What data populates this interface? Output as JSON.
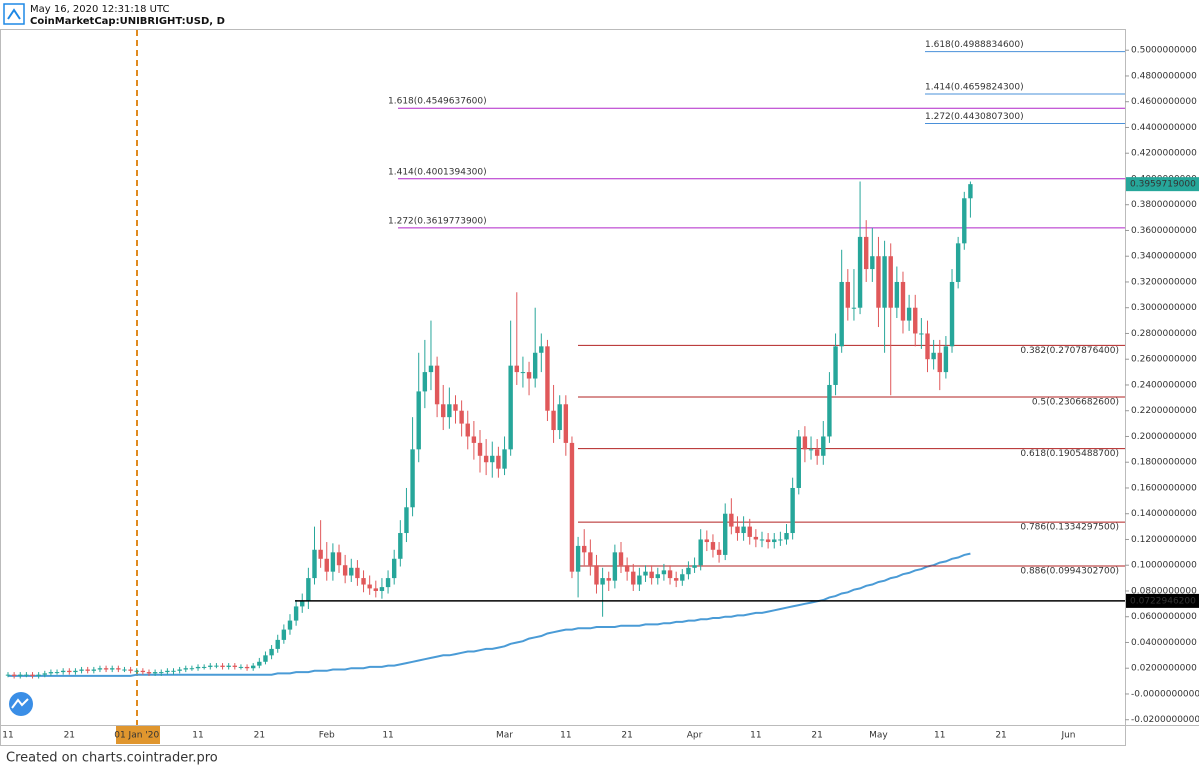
{
  "header": {
    "timestamp": "May 16, 2020 12:31:18 UTC",
    "symbol": "CoinMarketCap:UNIBRIGHT:USD, D"
  },
  "footer": "Created on charts.cointrader.pro",
  "chart_data": {
    "type": "candlestick",
    "categories": [
      "11",
      null,
      null,
      null,
      null,
      null,
      null,
      null,
      null,
      null,
      "21",
      null,
      null,
      null,
      null,
      null,
      null,
      null,
      null,
      null,
      null,
      "01 Jan '20",
      null,
      null,
      null,
      null,
      null,
      null,
      null,
      null,
      null,
      "11",
      null,
      null,
      null,
      null,
      null,
      null,
      null,
      null,
      null,
      "21",
      null,
      null,
      null,
      null,
      null,
      null,
      null,
      null,
      null,
      null,
      "Feb",
      null,
      null,
      null,
      null,
      null,
      null,
      null,
      null,
      null,
      "11",
      null,
      null,
      null,
      null,
      null,
      null,
      null,
      null,
      null,
      null,
      null,
      null,
      null,
      null,
      null,
      null,
      null,
      null,
      "Mar",
      null,
      null,
      null,
      null,
      null,
      null,
      null,
      null,
      null,
      "11",
      null,
      null,
      null,
      null,
      null,
      null,
      null,
      null,
      null,
      "21",
      null,
      null,
      null,
      null,
      null,
      null,
      null,
      null,
      null,
      null,
      "Apr",
      null,
      null,
      null,
      null,
      null,
      null,
      null,
      null,
      null,
      "11",
      null,
      null,
      null,
      null,
      null,
      null,
      null,
      null,
      null,
      "21",
      null,
      null,
      null,
      null,
      null,
      null,
      null,
      null,
      null,
      "May",
      null,
      null,
      null,
      null,
      null,
      null,
      null,
      null,
      null,
      "11",
      null,
      null,
      null,
      null,
      null,
      null,
      null,
      null,
      null,
      "21",
      null,
      null,
      null,
      null,
      null,
      null,
      null,
      null,
      null,
      null,
      "Jun"
    ],
    "open": [
      0.015,
      0.015,
      0.014,
      0.015,
      0.015,
      0.014,
      0.015,
      0.016,
      0.017,
      0.017,
      0.018,
      0.017,
      0.018,
      0.019,
      0.018,
      0.019,
      0.02,
      0.019,
      0.02,
      0.019,
      0.019,
      0.018,
      0.018,
      0.017,
      0.016,
      0.017,
      0.017,
      0.018,
      0.018,
      0.019,
      0.02,
      0.02,
      0.021,
      0.021,
      0.022,
      0.022,
      0.021,
      0.022,
      0.021,
      0.021,
      0.02,
      0.022,
      0.025,
      0.03,
      0.035,
      0.042,
      0.05,
      0.057,
      0.068,
      0.072,
      0.09,
      0.112,
      0.105,
      0.095,
      0.11,
      0.1,
      0.092,
      0.098,
      0.09,
      0.085,
      0.082,
      0.08,
      0.083,
      0.09,
      0.105,
      0.125,
      0.145,
      0.19,
      0.235,
      0.25,
      0.255,
      0.225,
      0.215,
      0.225,
      0.22,
      0.21,
      0.2,
      0.195,
      0.185,
      0.18,
      0.185,
      0.175,
      0.19,
      0.255,
      0.25,
      0.25,
      0.245,
      0.265,
      0.27,
      0.22,
      0.205,
      0.225,
      0.195,
      0.095,
      0.115,
      0.11,
      0.1,
      0.085,
      0.09,
      0.088,
      0.11,
      0.1,
      0.095,
      0.085,
      0.092,
      0.095,
      0.09,
      0.093,
      0.096,
      0.09,
      0.088,
      0.093,
      0.098,
      0.1,
      0.12,
      0.118,
      0.112,
      0.108,
      0.14,
      0.13,
      0.125,
      0.13,
      0.122,
      0.12,
      0.12,
      0.118,
      0.12,
      0.12,
      0.125,
      0.16,
      0.2,
      0.19,
      0.19,
      0.185,
      0.2,
      0.24,
      0.27,
      0.32,
      0.3,
      0.3,
      0.355,
      0.33,
      0.34,
      0.3,
      0.34,
      0.3,
      0.32,
      0.29,
      0.3,
      0.28,
      0.28,
      0.26,
      0.265,
      0.25,
      0.27,
      0.32,
      0.35,
      0.385,
      null,
      null,
      null,
      null,
      null,
      null,
      null,
      null,
      null,
      null,
      null,
      null,
      null,
      null,
      null,
      null
    ],
    "high": [
      0.017,
      0.017,
      0.017,
      0.017,
      0.017,
      0.017,
      0.018,
      0.019,
      0.019,
      0.02,
      0.02,
      0.02,
      0.021,
      0.021,
      0.021,
      0.022,
      0.022,
      0.022,
      0.022,
      0.021,
      0.021,
      0.02,
      0.02,
      0.019,
      0.019,
      0.019,
      0.02,
      0.02,
      0.021,
      0.022,
      0.022,
      0.023,
      0.023,
      0.024,
      0.024,
      0.024,
      0.024,
      0.024,
      0.023,
      0.023,
      0.024,
      0.028,
      0.033,
      0.038,
      0.046,
      0.054,
      0.062,
      0.073,
      0.078,
      0.098,
      0.13,
      0.135,
      0.118,
      0.117,
      0.116,
      0.108,
      0.105,
      0.104,
      0.096,
      0.092,
      0.088,
      0.09,
      0.096,
      0.112,
      0.135,
      0.16,
      0.215,
      0.265,
      0.275,
      0.29,
      0.262,
      0.24,
      0.238,
      0.232,
      0.228,
      0.22,
      0.212,
      0.205,
      0.198,
      0.196,
      0.192,
      0.2,
      0.29,
      0.312,
      0.262,
      0.258,
      0.3,
      0.28,
      0.275,
      0.24,
      0.232,
      0.232,
      0.2,
      0.122,
      0.128,
      0.12,
      0.108,
      0.098,
      0.095,
      0.116,
      0.118,
      0.106,
      0.101,
      0.098,
      0.1,
      0.1,
      0.098,
      0.101,
      0.1,
      0.095,
      0.097,
      0.103,
      0.106,
      0.128,
      0.127,
      0.124,
      0.118,
      0.148,
      0.152,
      0.138,
      0.138,
      0.136,
      0.128,
      0.126,
      0.125,
      0.125,
      0.126,
      0.132,
      0.168,
      0.205,
      0.208,
      0.2,
      0.198,
      0.212,
      0.25,
      0.28,
      0.345,
      0.33,
      0.33,
      0.398,
      0.368,
      0.362,
      0.355,
      0.352,
      0.35,
      0.332,
      0.328,
      0.31,
      0.31,
      0.292,
      0.29,
      0.275,
      0.275,
      0.278,
      0.33,
      0.355,
      0.39,
      0.398,
      null,
      null,
      null,
      null,
      null,
      null,
      null,
      null,
      null,
      null,
      null,
      null,
      null,
      null,
      null,
      null
    ],
    "low": [
      0.013,
      0.012,
      0.012,
      0.013,
      0.012,
      0.012,
      0.013,
      0.014,
      0.015,
      0.015,
      0.015,
      0.015,
      0.016,
      0.016,
      0.016,
      0.017,
      0.017,
      0.017,
      0.017,
      0.017,
      0.016,
      0.016,
      0.015,
      0.014,
      0.014,
      0.014,
      0.015,
      0.015,
      0.016,
      0.017,
      0.018,
      0.018,
      0.019,
      0.019,
      0.02,
      0.019,
      0.019,
      0.019,
      0.019,
      0.018,
      0.018,
      0.02,
      0.023,
      0.027,
      0.032,
      0.039,
      0.046,
      0.053,
      0.063,
      0.066,
      0.085,
      0.098,
      0.088,
      0.088,
      0.094,
      0.086,
      0.087,
      0.084,
      0.079,
      0.077,
      0.075,
      0.074,
      0.078,
      0.085,
      0.099,
      0.118,
      0.138,
      0.18,
      0.222,
      0.236,
      0.215,
      0.205,
      0.206,
      0.21,
      0.2,
      0.19,
      0.182,
      0.172,
      0.17,
      0.168,
      0.168,
      0.17,
      0.185,
      0.24,
      0.238,
      0.232,
      0.238,
      0.25,
      0.212,
      0.195,
      0.198,
      0.185,
      0.09,
      0.075,
      0.1,
      0.092,
      0.078,
      0.06,
      0.08,
      0.082,
      0.094,
      0.088,
      0.08,
      0.08,
      0.087,
      0.085,
      0.085,
      0.088,
      0.085,
      0.083,
      0.084,
      0.089,
      0.094,
      0.096,
      0.111,
      0.106,
      0.102,
      0.104,
      0.124,
      0.119,
      0.119,
      0.116,
      0.114,
      0.114,
      0.113,
      0.113,
      0.115,
      0.116,
      0.12,
      0.155,
      0.18,
      0.182,
      0.178,
      0.178,
      0.195,
      0.232,
      0.265,
      0.29,
      0.29,
      0.295,
      0.32,
      0.32,
      0.285,
      0.265,
      0.232,
      0.292,
      0.28,
      0.282,
      0.27,
      0.268,
      0.25,
      0.252,
      0.236,
      0.245,
      0.265,
      0.315,
      0.345,
      0.37,
      null,
      null,
      null,
      null,
      null,
      null,
      null,
      null,
      null,
      null,
      null,
      null,
      null,
      null,
      null,
      null
    ],
    "close": [
      0.015,
      0.014,
      0.015,
      0.015,
      0.014,
      0.015,
      0.016,
      0.017,
      0.017,
      0.018,
      0.017,
      0.018,
      0.019,
      0.018,
      0.019,
      0.02,
      0.019,
      0.02,
      0.019,
      0.019,
      0.018,
      0.018,
      0.017,
      0.016,
      0.017,
      0.017,
      0.018,
      0.018,
      0.019,
      0.02,
      0.02,
      0.021,
      0.021,
      0.022,
      0.022,
      0.021,
      0.022,
      0.021,
      0.021,
      0.02,
      0.022,
      0.025,
      0.03,
      0.035,
      0.042,
      0.05,
      0.057,
      0.068,
      0.072,
      0.09,
      0.112,
      0.105,
      0.095,
      0.11,
      0.1,
      0.092,
      0.098,
      0.09,
      0.085,
      0.082,
      0.08,
      0.083,
      0.09,
      0.105,
      0.125,
      0.145,
      0.19,
      0.235,
      0.25,
      0.255,
      0.225,
      0.215,
      0.225,
      0.22,
      0.21,
      0.2,
      0.195,
      0.185,
      0.18,
      0.185,
      0.175,
      0.19,
      0.255,
      0.25,
      0.25,
      0.245,
      0.265,
      0.27,
      0.22,
      0.205,
      0.225,
      0.195,
      0.095,
      0.115,
      0.11,
      0.1,
      0.085,
      0.09,
      0.088,
      0.11,
      0.1,
      0.095,
      0.085,
      0.092,
      0.095,
      0.09,
      0.093,
      0.096,
      0.09,
      0.088,
      0.093,
      0.098,
      0.1,
      0.12,
      0.118,
      0.112,
      0.108,
      0.14,
      0.13,
      0.125,
      0.13,
      0.122,
      0.12,
      0.12,
      0.118,
      0.12,
      0.12,
      0.125,
      0.16,
      0.2,
      0.19,
      0.19,
      0.185,
      0.2,
      0.24,
      0.27,
      0.32,
      0.3,
      0.3,
      0.355,
      0.33,
      0.34,
      0.3,
      0.34,
      0.3,
      0.32,
      0.29,
      0.3,
      0.28,
      0.28,
      0.26,
      0.265,
      0.25,
      0.27,
      0.32,
      0.35,
      0.385,
      0.3959719,
      null,
      null,
      null,
      null,
      null,
      null,
      null,
      null,
      null,
      null,
      null,
      null,
      null,
      null,
      null,
      null
    ],
    "up_color": "#26a69a",
    "down_color": "#e0585a",
    "ma": {
      "color": "#4a9bd6",
      "values": [
        0.014,
        0.014,
        0.014,
        0.014,
        0.014,
        0.014,
        0.014,
        0.014,
        0.014,
        0.014,
        0.014,
        0.014,
        0.014,
        0.014,
        0.014,
        0.014,
        0.014,
        0.014,
        0.014,
        0.014,
        0.014,
        0.015,
        0.015,
        0.015,
        0.015,
        0.015,
        0.015,
        0.015,
        0.015,
        0.015,
        0.015,
        0.015,
        0.015,
        0.015,
        0.015,
        0.015,
        0.015,
        0.015,
        0.015,
        0.015,
        0.015,
        0.015,
        0.015,
        0.015,
        0.016,
        0.016,
        0.016,
        0.017,
        0.017,
        0.017,
        0.018,
        0.018,
        0.018,
        0.019,
        0.019,
        0.019,
        0.02,
        0.02,
        0.02,
        0.021,
        0.021,
        0.021,
        0.022,
        0.022,
        0.023,
        0.024,
        0.025,
        0.026,
        0.027,
        0.028,
        0.029,
        0.03,
        0.03,
        0.031,
        0.032,
        0.033,
        0.033,
        0.034,
        0.035,
        0.035,
        0.036,
        0.037,
        0.039,
        0.04,
        0.041,
        0.043,
        0.044,
        0.045,
        0.047,
        0.048,
        0.049,
        0.05,
        0.05,
        0.051,
        0.051,
        0.051,
        0.052,
        0.052,
        0.052,
        0.052,
        0.053,
        0.053,
        0.053,
        0.053,
        0.054,
        0.054,
        0.054,
        0.055,
        0.055,
        0.056,
        0.056,
        0.057,
        0.057,
        0.058,
        0.058,
        0.059,
        0.059,
        0.06,
        0.06,
        0.061,
        0.061,
        0.062,
        0.063,
        0.063,
        0.064,
        0.065,
        0.066,
        0.067,
        0.068,
        0.069,
        0.07,
        0.071,
        0.072,
        0.073,
        0.075,
        0.076,
        0.078,
        0.079,
        0.081,
        0.082,
        0.084,
        0.085,
        0.087,
        0.088,
        0.09,
        0.091,
        0.093,
        0.094,
        0.096,
        0.097,
        0.099,
        0.1,
        0.102,
        0.103,
        0.105,
        0.106,
        0.108,
        0.109,
        null,
        null,
        null,
        null,
        null,
        null,
        null,
        null,
        null,
        null,
        null,
        null,
        null,
        null,
        null,
        null
      ]
    },
    "levels": [
      {
        "label": "1.618(0.4988834600)",
        "value": 0.49888346,
        "color": "#4a90d9"
      },
      {
        "label": "1.414(0.4659824300)",
        "value": 0.46598243,
        "color": "#4a90d9"
      },
      {
        "label": "1.272(0.4430807300)",
        "value": 0.44308073,
        "color": "#4a90d9"
      },
      {
        "label": "1.618(0.4549637600)",
        "value": 0.45496376,
        "color": "#b026c9"
      },
      {
        "label": "1.414(0.4001394300)",
        "value": 0.40013943,
        "color": "#b026c9"
      },
      {
        "label": "1.272(0.3619773900)",
        "value": 0.36197739,
        "color": "#b026c9"
      },
      {
        "label": "0.382(0.2707876400)",
        "value": 0.27078764,
        "color": "#b22222"
      },
      {
        "label": "0.5(0.2306682600)",
        "value": 0.23066826,
        "color": "#b22222"
      },
      {
        "label": "0.618(0.1905488700)",
        "value": 0.19054887,
        "color": "#b22222"
      },
      {
        "label": "0.786(0.1334297500)",
        "value": 0.13342975,
        "color": "#b22222"
      },
      {
        "label": "0.886(0.0994302700)",
        "value": 0.09943027,
        "color": "#b22222"
      }
    ],
    "price_tags": [
      {
        "label": "0.3959719000",
        "value": 0.3959719,
        "color": "#26a69a"
      },
      {
        "label": "0.0722946200",
        "value": 0.0722946,
        "color": "#000000"
      }
    ],
    "ylim": [
      -0.0241,
      0.5157
    ],
    "yticks": [
      {
        "value": 0.5,
        "label": "0.5000000000"
      },
      {
        "value": 0.48,
        "label": "0.4800000000"
      },
      {
        "value": 0.46,
        "label": "0.4600000000"
      },
      {
        "value": 0.44,
        "label": "0.4400000000"
      },
      {
        "value": 0.42,
        "label": "0.4200000000"
      },
      {
        "value": 0.4,
        "label": "0.4000000000"
      },
      {
        "value": 0.38,
        "label": "0.3800000000"
      },
      {
        "value": 0.36,
        "label": "0.3600000000"
      },
      {
        "value": 0.34,
        "label": "0.3400000000"
      },
      {
        "value": 0.32,
        "label": "0.3200000000"
      },
      {
        "value": 0.3,
        "label": "0.3000000000"
      },
      {
        "value": 0.28,
        "label": "0.2800000000"
      },
      {
        "value": 0.26,
        "label": "0.2600000000"
      },
      {
        "value": 0.24,
        "label": "0.2400000000"
      },
      {
        "value": 0.22,
        "label": "0.2200000000"
      },
      {
        "value": 0.2,
        "label": "0.2000000000"
      },
      {
        "value": 0.18,
        "label": "0.1800000000"
      },
      {
        "value": 0.16,
        "label": "0.1600000000"
      },
      {
        "value": 0.14,
        "label": "0.1400000000"
      },
      {
        "value": 0.12,
        "label": "0.1200000000"
      },
      {
        "value": 0.1,
        "label": "0.1000000000"
      },
      {
        "value": 0.08,
        "label": "0.0800000000"
      },
      {
        "value": 0.06,
        "label": "0.0600000000"
      },
      {
        "value": 0.04,
        "label": "0.0400000000"
      },
      {
        "value": 0.02,
        "label": "0.0200000000"
      },
      {
        "value": 0,
        "label": "-0.0000000000"
      },
      {
        "value": -0.02,
        "label": "-0.0200000000"
      }
    ]
  }
}
